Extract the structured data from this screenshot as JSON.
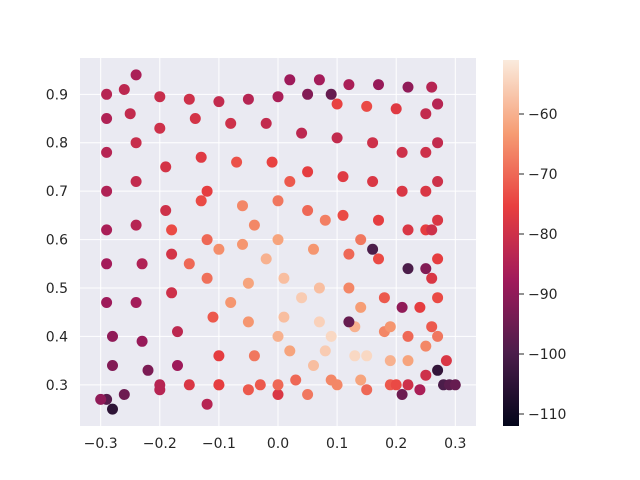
{
  "chart_data": {
    "type": "scatter",
    "title": "",
    "xlabel": "",
    "ylabel": "",
    "xlim": [
      -0.335,
      0.335
    ],
    "ylim": [
      0.215,
      0.975
    ],
    "x_ticks": [
      -0.3,
      -0.2,
      -0.1,
      0.0,
      0.1,
      0.2,
      0.3
    ],
    "x_tick_labels": [
      "−0.3",
      "−0.2",
      "−0.1",
      "0.0",
      "0.1",
      "0.2",
      "0.3"
    ],
    "y_ticks": [
      0.3,
      0.4,
      0.5,
      0.6,
      0.7,
      0.8,
      0.9
    ],
    "y_tick_labels": [
      "0.3",
      "0.4",
      "0.5",
      "0.6",
      "0.7",
      "0.8",
      "0.9"
    ],
    "grid": true,
    "background_color": "#eaeaf2",
    "colormap": "rocket",
    "colorbar": {
      "range": [
        -112,
        -51
      ],
      "ticks": [
        -60,
        -70,
        -80,
        -90,
        -100,
        -110
      ],
      "tick_labels": [
        "−60",
        "−70",
        "−80",
        "−90",
        "−100",
        "−110"
      ]
    },
    "colormap_stops": [
      "#03051a",
      "#4c1d4b",
      "#a11a5b",
      "#e83f3f",
      "#f69c73",
      "#faebdd"
    ],
    "points": [
      {
        "x": -0.29,
        "y": 0.9,
        "c": -84
      },
      {
        "x": -0.26,
        "y": 0.91,
        "c": -83
      },
      {
        "x": -0.24,
        "y": 0.94,
        "c": -86
      },
      {
        "x": -0.2,
        "y": 0.895,
        "c": -81
      },
      {
        "x": -0.15,
        "y": 0.89,
        "c": -80
      },
      {
        "x": -0.1,
        "y": 0.885,
        "c": -82
      },
      {
        "x": -0.05,
        "y": 0.89,
        "c": -84
      },
      {
        "x": 0.0,
        "y": 0.895,
        "c": -86
      },
      {
        "x": 0.02,
        "y": 0.93,
        "c": -88
      },
      {
        "x": 0.07,
        "y": 0.93,
        "c": -87
      },
      {
        "x": 0.12,
        "y": 0.92,
        "c": -86
      },
      {
        "x": 0.17,
        "y": 0.92,
        "c": -89
      },
      {
        "x": 0.22,
        "y": 0.915,
        "c": -90
      },
      {
        "x": 0.26,
        "y": 0.915,
        "c": -84
      },
      {
        "x": 0.27,
        "y": 0.88,
        "c": -78
      },
      {
        "x": 0.1,
        "y": 0.88,
        "c": -75
      },
      {
        "x": 0.15,
        "y": 0.875,
        "c": -74
      },
      {
        "x": 0.2,
        "y": 0.87,
        "c": -77
      },
      {
        "x": 0.05,
        "y": 0.9,
        "c": -92
      },
      {
        "x": 0.09,
        "y": 0.9,
        "c": -96
      },
      {
        "x": -0.29,
        "y": 0.85,
        "c": -85
      },
      {
        "x": -0.29,
        "y": 0.78,
        "c": -84
      },
      {
        "x": -0.29,
        "y": 0.7,
        "c": -85
      },
      {
        "x": -0.29,
        "y": 0.62,
        "c": -86
      },
      {
        "x": -0.29,
        "y": 0.55,
        "c": -87
      },
      {
        "x": -0.29,
        "y": 0.47,
        "c": -88
      },
      {
        "x": -0.28,
        "y": 0.4,
        "c": -90
      },
      {
        "x": -0.28,
        "y": 0.34,
        "c": -92
      },
      {
        "x": -0.29,
        "y": 0.27,
        "c": -98
      },
      {
        "x": -0.3,
        "y": 0.27,
        "c": -90
      },
      {
        "x": -0.28,
        "y": 0.25,
        "c": -105
      },
      {
        "x": -0.26,
        "y": 0.28,
        "c": -95
      },
      {
        "x": -0.25,
        "y": 0.86,
        "c": -82
      },
      {
        "x": -0.24,
        "y": 0.8,
        "c": -81
      },
      {
        "x": -0.24,
        "y": 0.72,
        "c": -82
      },
      {
        "x": -0.24,
        "y": 0.63,
        "c": -84
      },
      {
        "x": -0.23,
        "y": 0.55,
        "c": -85
      },
      {
        "x": -0.24,
        "y": 0.47,
        "c": -87
      },
      {
        "x": -0.23,
        "y": 0.39,
        "c": -89
      },
      {
        "x": -0.22,
        "y": 0.33,
        "c": -93
      },
      {
        "x": -0.2,
        "y": 0.29,
        "c": -84
      },
      {
        "x": -0.2,
        "y": 0.83,
        "c": -80
      },
      {
        "x": -0.19,
        "y": 0.75,
        "c": -79
      },
      {
        "x": -0.19,
        "y": 0.66,
        "c": -80
      },
      {
        "x": -0.18,
        "y": 0.57,
        "c": -79
      },
      {
        "x": -0.18,
        "y": 0.49,
        "c": -80
      },
      {
        "x": -0.17,
        "y": 0.41,
        "c": -83
      },
      {
        "x": -0.17,
        "y": 0.34,
        "c": -88
      },
      {
        "x": -0.15,
        "y": 0.3,
        "c": -78
      },
      {
        "x": -0.14,
        "y": 0.85,
        "c": -79
      },
      {
        "x": -0.13,
        "y": 0.77,
        "c": -77
      },
      {
        "x": -0.13,
        "y": 0.68,
        "c": -74
      },
      {
        "x": -0.12,
        "y": 0.6,
        "c": -70
      },
      {
        "x": -0.12,
        "y": 0.52,
        "c": -69
      },
      {
        "x": -0.11,
        "y": 0.44,
        "c": -72
      },
      {
        "x": -0.1,
        "y": 0.36,
        "c": -76
      },
      {
        "x": -0.1,
        "y": 0.3,
        "c": -70
      },
      {
        "x": -0.12,
        "y": 0.26,
        "c": -84
      },
      {
        "x": -0.08,
        "y": 0.84,
        "c": -80
      },
      {
        "x": -0.07,
        "y": 0.76,
        "c": -73
      },
      {
        "x": -0.06,
        "y": 0.67,
        "c": -66
      },
      {
        "x": -0.06,
        "y": 0.59,
        "c": -64
      },
      {
        "x": -0.05,
        "y": 0.51,
        "c": -62
      },
      {
        "x": -0.05,
        "y": 0.43,
        "c": -64
      },
      {
        "x": -0.04,
        "y": 0.36,
        "c": -68
      },
      {
        "x": -0.03,
        "y": 0.3,
        "c": -72
      },
      {
        "x": -0.02,
        "y": 0.84,
        "c": -82
      },
      {
        "x": -0.01,
        "y": 0.76,
        "c": -75
      },
      {
        "x": 0.0,
        "y": 0.68,
        "c": -68
      },
      {
        "x": 0.0,
        "y": 0.6,
        "c": -62
      },
      {
        "x": 0.01,
        "y": 0.52,
        "c": -58
      },
      {
        "x": 0.01,
        "y": 0.44,
        "c": -58
      },
      {
        "x": 0.02,
        "y": 0.37,
        "c": -62
      },
      {
        "x": 0.03,
        "y": 0.31,
        "c": -70
      },
      {
        "x": 0.0,
        "y": 0.28,
        "c": -78
      },
      {
        "x": 0.04,
        "y": 0.82,
        "c": -83
      },
      {
        "x": 0.05,
        "y": 0.74,
        "c": -76
      },
      {
        "x": 0.05,
        "y": 0.66,
        "c": -70
      },
      {
        "x": 0.06,
        "y": 0.58,
        "c": -64
      },
      {
        "x": 0.07,
        "y": 0.5,
        "c": -58
      },
      {
        "x": 0.07,
        "y": 0.43,
        "c": -55
      },
      {
        "x": 0.08,
        "y": 0.37,
        "c": -56
      },
      {
        "x": 0.09,
        "y": 0.31,
        "c": -66
      },
      {
        "x": 0.1,
        "y": 0.81,
        "c": -82
      },
      {
        "x": 0.11,
        "y": 0.73,
        "c": -77
      },
      {
        "x": 0.11,
        "y": 0.65,
        "c": -74
      },
      {
        "x": 0.12,
        "y": 0.57,
        "c": -70
      },
      {
        "x": 0.12,
        "y": 0.5,
        "c": -66
      },
      {
        "x": 0.13,
        "y": 0.42,
        "c": -60
      },
      {
        "x": 0.13,
        "y": 0.36,
        "c": -54
      },
      {
        "x": 0.14,
        "y": 0.31,
        "c": -62
      },
      {
        "x": 0.12,
        "y": 0.43,
        "c": -96
      },
      {
        "x": 0.16,
        "y": 0.8,
        "c": -80
      },
      {
        "x": 0.16,
        "y": 0.72,
        "c": -78
      },
      {
        "x": 0.17,
        "y": 0.64,
        "c": -76
      },
      {
        "x": 0.17,
        "y": 0.56,
        "c": -74
      },
      {
        "x": 0.18,
        "y": 0.48,
        "c": -72
      },
      {
        "x": 0.18,
        "y": 0.41,
        "c": -66
      },
      {
        "x": 0.19,
        "y": 0.35,
        "c": -60
      },
      {
        "x": 0.19,
        "y": 0.3,
        "c": -72
      },
      {
        "x": 0.16,
        "y": 0.58,
        "c": -100
      },
      {
        "x": 0.21,
        "y": 0.78,
        "c": -80
      },
      {
        "x": 0.21,
        "y": 0.7,
        "c": -78
      },
      {
        "x": 0.22,
        "y": 0.62,
        "c": -78
      },
      {
        "x": 0.22,
        "y": 0.54,
        "c": -100
      },
      {
        "x": 0.21,
        "y": 0.46,
        "c": -90
      },
      {
        "x": 0.22,
        "y": 0.4,
        "c": -70
      },
      {
        "x": 0.22,
        "y": 0.35,
        "c": -62
      },
      {
        "x": 0.22,
        "y": 0.3,
        "c": -80
      },
      {
        "x": 0.21,
        "y": 0.28,
        "c": -95
      },
      {
        "x": 0.25,
        "y": 0.86,
        "c": -82
      },
      {
        "x": 0.25,
        "y": 0.78,
        "c": -80
      },
      {
        "x": 0.25,
        "y": 0.7,
        "c": -78
      },
      {
        "x": 0.25,
        "y": 0.62,
        "c": -76
      },
      {
        "x": 0.25,
        "y": 0.54,
        "c": -92
      },
      {
        "x": 0.24,
        "y": 0.46,
        "c": -76
      },
      {
        "x": 0.25,
        "y": 0.38,
        "c": -66
      },
      {
        "x": 0.25,
        "y": 0.32,
        "c": -80
      },
      {
        "x": 0.24,
        "y": 0.29,
        "c": -86
      },
      {
        "x": 0.27,
        "y": 0.88,
        "c": -84
      },
      {
        "x": 0.27,
        "y": 0.8,
        "c": -82
      },
      {
        "x": 0.27,
        "y": 0.72,
        "c": -80
      },
      {
        "x": 0.27,
        "y": 0.64,
        "c": -78
      },
      {
        "x": 0.27,
        "y": 0.56,
        "c": -76
      },
      {
        "x": 0.27,
        "y": 0.48,
        "c": -74
      },
      {
        "x": 0.27,
        "y": 0.4,
        "c": -68
      },
      {
        "x": 0.27,
        "y": 0.33,
        "c": -104
      },
      {
        "x": 0.28,
        "y": 0.3,
        "c": -100
      },
      {
        "x": 0.29,
        "y": 0.3,
        "c": -98
      },
      {
        "x": 0.3,
        "y": 0.3,
        "c": -96
      },
      {
        "x": 0.285,
        "y": 0.35,
        "c": -78
      },
      {
        "x": 0.26,
        "y": 0.62,
        "c": -80
      },
      {
        "x": 0.26,
        "y": 0.52,
        "c": -78
      },
      {
        "x": 0.26,
        "y": 0.42,
        "c": -72
      },
      {
        "x": -0.2,
        "y": 0.3,
        "c": -84
      },
      {
        "x": -0.1,
        "y": 0.3,
        "c": -76
      },
      {
        "x": 0.0,
        "y": 0.3,
        "c": -70
      },
      {
        "x": 0.1,
        "y": 0.3,
        "c": -66
      },
      {
        "x": 0.2,
        "y": 0.3,
        "c": -74
      },
      {
        "x": -0.05,
        "y": 0.29,
        "c": -72
      },
      {
        "x": 0.05,
        "y": 0.28,
        "c": -68
      },
      {
        "x": 0.15,
        "y": 0.29,
        "c": -70
      },
      {
        "x": -0.18,
        "y": 0.62,
        "c": -74
      },
      {
        "x": -0.1,
        "y": 0.58,
        "c": -65
      },
      {
        "x": -0.02,
        "y": 0.56,
        "c": -60
      },
      {
        "x": 0.04,
        "y": 0.48,
        "c": -56
      },
      {
        "x": 0.09,
        "y": 0.4,
        "c": -54
      },
      {
        "x": 0.15,
        "y": 0.36,
        "c": -54
      },
      {
        "x": -0.15,
        "y": 0.55,
        "c": -70
      },
      {
        "x": -0.08,
        "y": 0.47,
        "c": -64
      },
      {
        "x": 0.0,
        "y": 0.4,
        "c": -60
      },
      {
        "x": 0.06,
        "y": 0.34,
        "c": -58
      },
      {
        "x": -0.12,
        "y": 0.7,
        "c": -76
      },
      {
        "x": -0.04,
        "y": 0.63,
        "c": -66
      },
      {
        "x": 0.02,
        "y": 0.72,
        "c": -72
      },
      {
        "x": 0.08,
        "y": 0.64,
        "c": -67
      },
      {
        "x": 0.14,
        "y": 0.6,
        "c": -68
      },
      {
        "x": 0.14,
        "y": 0.46,
        "c": -63
      },
      {
        "x": 0.19,
        "y": 0.42,
        "c": -64
      }
    ]
  }
}
